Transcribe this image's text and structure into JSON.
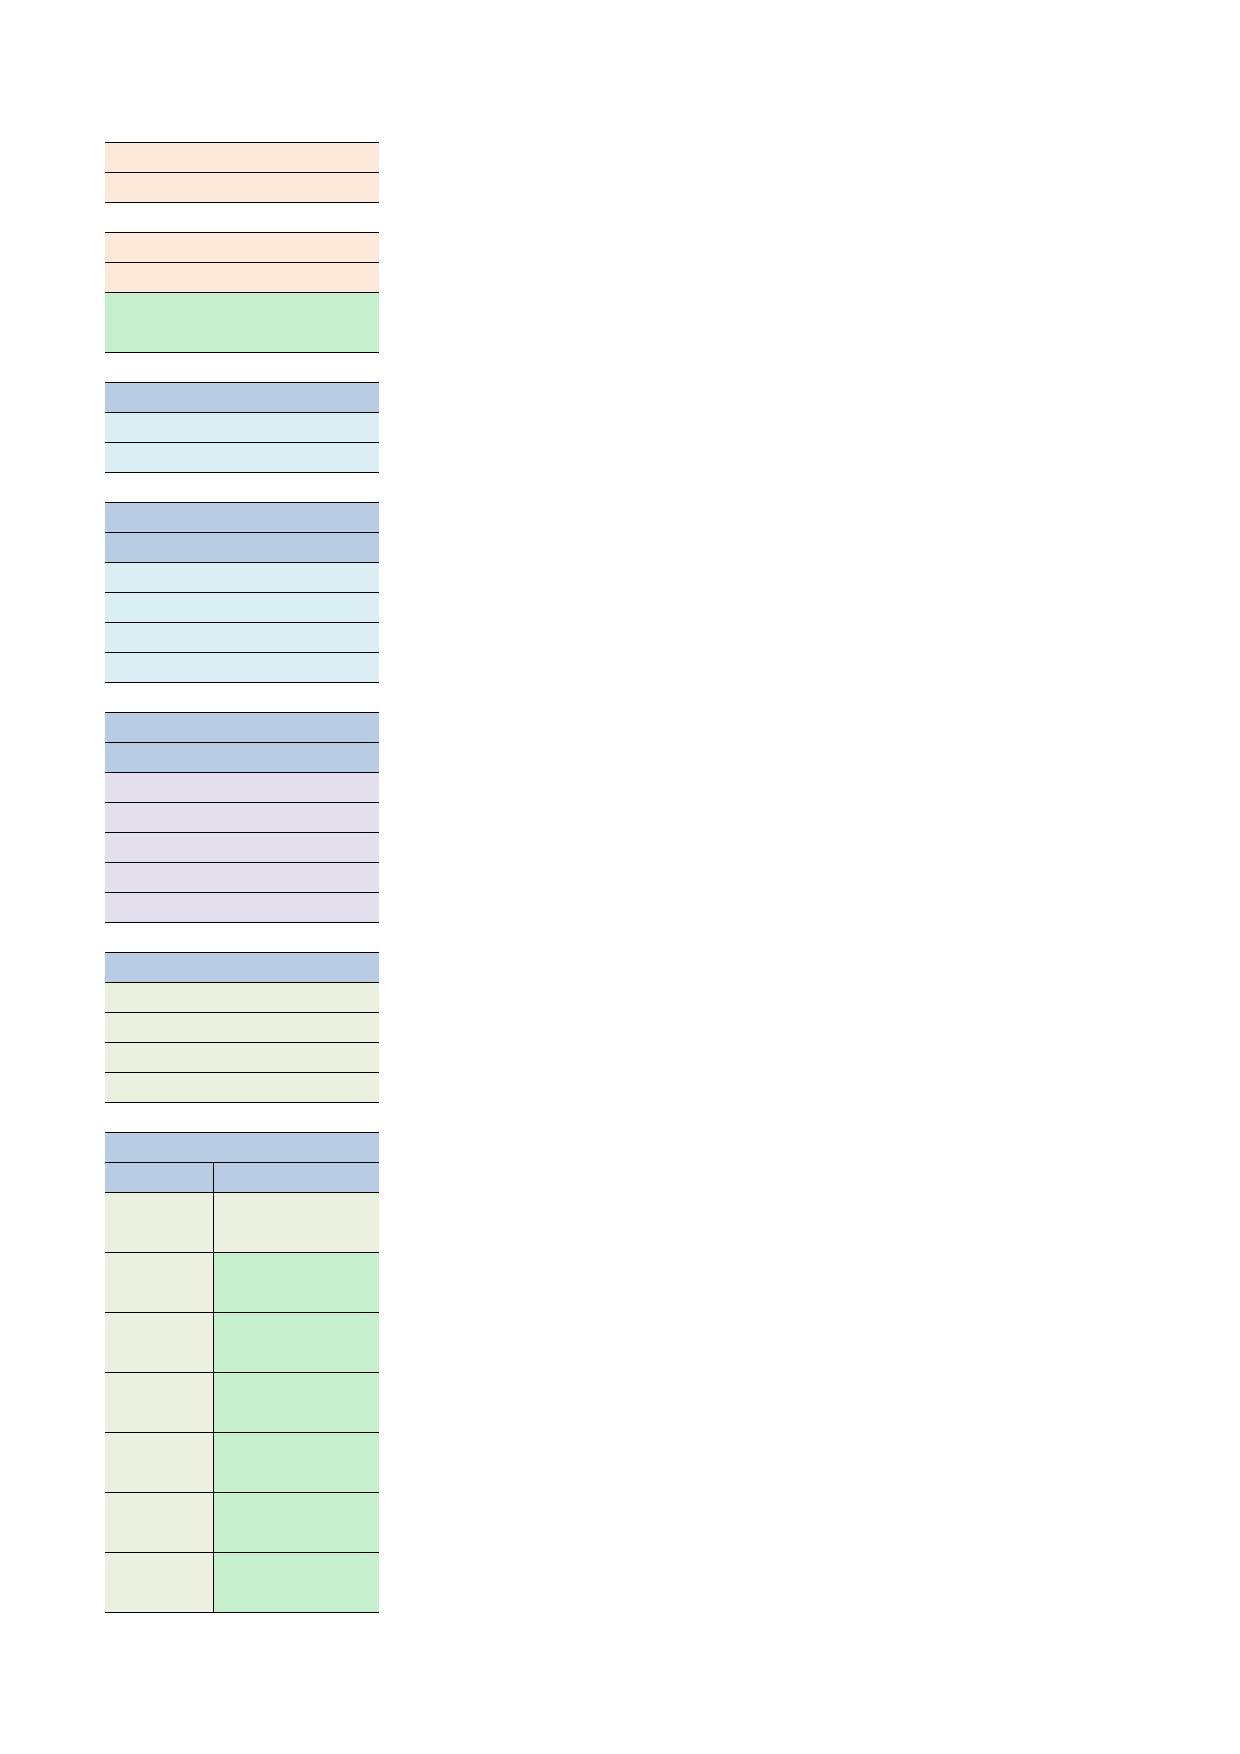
{
  "document": {
    "type": "spreadsheet-printout",
    "has_text": false,
    "colors": {
      "peach": "#fde9d9",
      "green": "#c6efce",
      "blue": "#b8cce4",
      "light_blue": "#daeef3",
      "lavender": "#e4dfec",
      "olive": "#ebf1de",
      "border": "#000000"
    }
  }
}
